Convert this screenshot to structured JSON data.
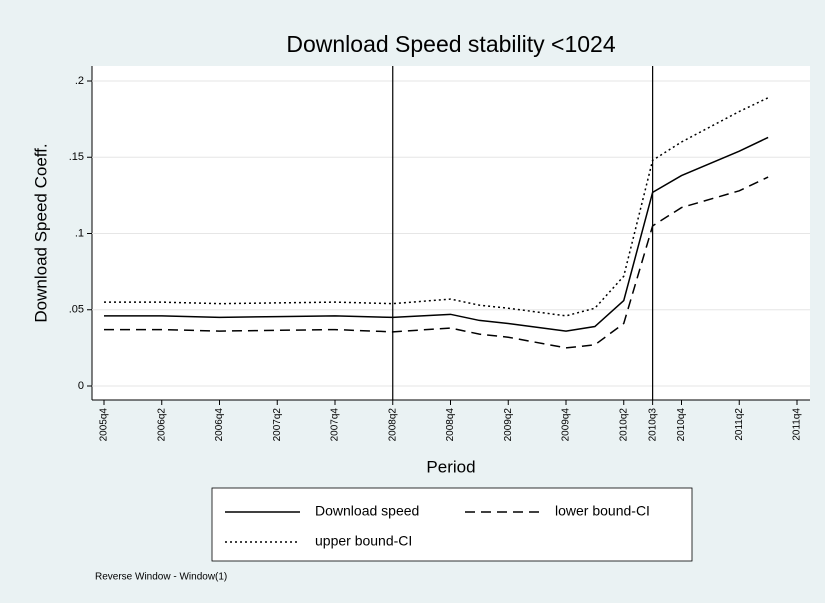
{
  "chart_data": {
    "type": "line",
    "title": "Download Speed stability <1024",
    "x_label": "Period",
    "y_label": "Download Speed Coeff.",
    "note": "Reverse Window - Window(1)",
    "x": [
      "2005q4",
      "2006q2",
      "2006q4",
      "2007q2",
      "2007q4",
      "2008q2",
      "2008q4",
      "2009q1",
      "2009q2",
      "2009q4",
      "2010q1",
      "2010q2",
      "2010q3",
      "2010q4",
      "2011q2",
      "2011q3"
    ],
    "series": [
      {
        "name": "Download speed",
        "color": "#000000",
        "dash": "solid",
        "values": [
          0.046,
          0.046,
          0.045,
          0.0455,
          0.046,
          0.045,
          0.047,
          0.043,
          0.041,
          0.036,
          0.039,
          0.056,
          0.127,
          0.138,
          0.154,
          0.163
        ]
      },
      {
        "name": "lower bound-CI",
        "color": "#000000",
        "dash": "dashed",
        "values": [
          0.037,
          0.037,
          0.036,
          0.0365,
          0.037,
          0.0355,
          0.038,
          0.034,
          0.032,
          0.025,
          0.027,
          0.041,
          0.105,
          0.117,
          0.128,
          0.137
        ]
      },
      {
        "name": "upper bound-CI",
        "color": "#000000",
        "dash": "dotted",
        "values": [
          0.055,
          0.055,
          0.054,
          0.0545,
          0.055,
          0.054,
          0.057,
          0.053,
          0.051,
          0.046,
          0.051,
          0.072,
          0.148,
          0.16,
          0.18,
          0.189
        ]
      }
    ],
    "xlim": [
      "2005q4",
      "2011q4"
    ],
    "xticks": [
      "2005q4",
      "2006q2",
      "2006q4",
      "2007q2",
      "2007q4",
      "2008q2",
      "2008q4",
      "2009q2",
      "2009q4",
      "2010q2",
      "2010q3",
      "2010q4",
      "2011q2",
      "2011q4"
    ],
    "xlines": [
      "2008q2",
      "2010q3"
    ],
    "ylim": [
      0,
      0.2
    ],
    "yticks": [
      0,
      {
        "value": 0.05,
        "label": ".05"
      },
      {
        "value": 0.1,
        "label": ".1"
      },
      {
        "value": 0.15,
        "label": ".15"
      },
      {
        "value": 0.2,
        "label": ".2"
      }
    ],
    "grid": true
  }
}
